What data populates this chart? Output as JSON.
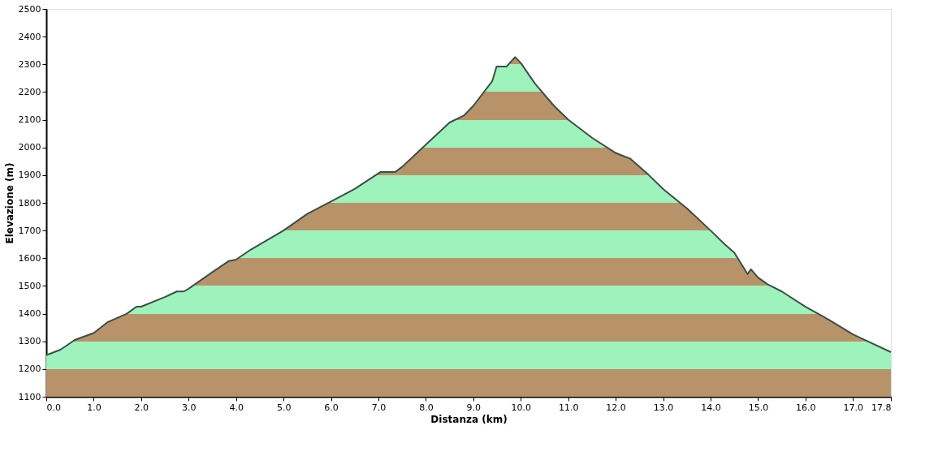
{
  "chart_data": {
    "type": "area",
    "xlabel": "Distanza (km)",
    "ylabel": "Elevazione (m)",
    "x": [
      0,
      0.3,
      0.6,
      1.0,
      1.3,
      1.7,
      1.9,
      2.0,
      2.5,
      2.75,
      2.9,
      3.0,
      3.5,
      3.85,
      4.0,
      4.3,
      5.0,
      5.5,
      6.0,
      6.5,
      7.04,
      7.35,
      7.5,
      8.0,
      8.5,
      8.8,
      9.0,
      9.4,
      9.49,
      9.7,
      9.88,
      10.0,
      10.3,
      10.7,
      11.0,
      11.5,
      12.0,
      12.3,
      12.7,
      13.0,
      13.5,
      14.0,
      14.3,
      14.5,
      14.78,
      14.85,
      15.0,
      15.2,
      15.5,
      16.0,
      16.5,
      17.0,
      17.3,
      17.8
    ],
    "series": [
      {
        "color": "#3b4f45",
        "values": [
          1250,
          1270,
          1305,
          1330,
          1370,
          1400,
          1425,
          1425,
          1460,
          1480,
          1480,
          1490,
          1550,
          1590,
          1595,
          1630,
          1700,
          1760,
          1805,
          1850,
          1911,
          1911,
          1930,
          2010,
          2090,
          2115,
          2150,
          2240,
          2292,
          2292,
          2326,
          2305,
          2230,
          2150,
          2100,
          2035,
          1980,
          1960,
          1900,
          1850,
          1780,
          1700,
          1650,
          1620,
          1543,
          1560,
          1530,
          1506,
          1480,
          1425,
          1377,
          1325,
          1301,
          1261
        ]
      }
    ],
    "xlim": [
      0,
      17.8
    ],
    "xticks": [
      {
        "value": 0,
        "label": "0.0"
      },
      {
        "value": 1,
        "label": "1.0"
      },
      {
        "value": 2,
        "label": "2.0"
      },
      {
        "value": 3,
        "label": "3.0"
      },
      {
        "value": 4,
        "label": "4.0"
      },
      {
        "value": 5,
        "label": "5.0"
      },
      {
        "value": 6,
        "label": "6.0"
      },
      {
        "value": 7,
        "label": "7.0"
      },
      {
        "value": 8,
        "label": "8.0"
      },
      {
        "value": 9,
        "label": "9.0"
      },
      {
        "value": 10,
        "label": "10.0"
      },
      {
        "value": 11,
        "label": "11.0"
      },
      {
        "value": 12,
        "label": "12.0"
      },
      {
        "value": 13,
        "label": "13.0"
      },
      {
        "value": 14,
        "label": "14.0"
      },
      {
        "value": 15,
        "label": "15.0"
      },
      {
        "value": 16,
        "label": "16.0"
      },
      {
        "value": 17,
        "label": "17.0"
      },
      {
        "value": 17.8,
        "label": "17.8"
      }
    ],
    "ylim": [
      1100,
      2500
    ],
    "yticks": [
      1100,
      1200,
      1300,
      1400,
      1500,
      1600,
      1700,
      1800,
      1900,
      2000,
      2100,
      2200,
      2300,
      2400,
      2500
    ],
    "grid": false
  }
}
